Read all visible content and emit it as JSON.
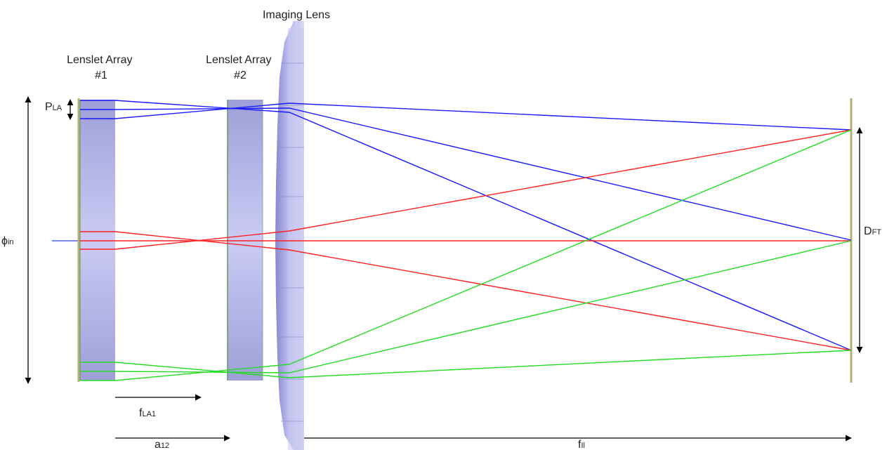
{
  "labels": {
    "imaging_lens": "Imaging Lens",
    "lenslet_array_1": {
      "line1": "Lenslet Array",
      "line2": "#1"
    },
    "lenslet_array_2": {
      "line1": "Lenslet Array",
      "line2": "#2"
    },
    "p_la": {
      "main": "P",
      "sub": "LA"
    },
    "phi_in": {
      "main": "ϕ",
      "sub": "in"
    },
    "d_ft": {
      "main": "D",
      "sub": "FT"
    },
    "f_la1": {
      "main": "f",
      "sub": "LA1"
    },
    "a_12": {
      "main": "a",
      "sub": "12"
    },
    "f_il": {
      "main": "f",
      "sub": "Il"
    }
  },
  "colors": {
    "ray_top": "#1a1aff",
    "ray_middle": "#ff2020",
    "ray_bottom": "#22dd22",
    "lens_fill": "#9c9ce0",
    "plate_edge": "#b5b070",
    "arrow": "#000000",
    "input_beam": "#7a86ee"
  }
}
